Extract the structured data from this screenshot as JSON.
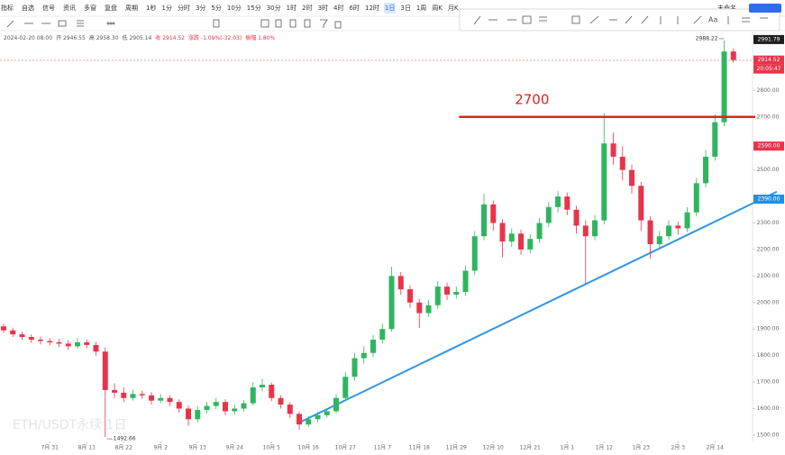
{
  "toolbar": {
    "tools": [
      "指标",
      "自选",
      "信号",
      "资讯",
      "多窗",
      "复盘",
      "周期"
    ],
    "intervals": [
      "1秒",
      "1分",
      "分时",
      "3分",
      "5分",
      "10分",
      "15分",
      "30分",
      "1时",
      "2时",
      "3时",
      "4时",
      "6时",
      "12时",
      "1日",
      "3日",
      "1周",
      "周K",
      "月K"
    ],
    "active_interval": "1日",
    "layout_name": "未命名"
  },
  "info": {
    "datetime": "2024-02-20 08:00",
    "items": [
      "开 2946.55",
      "高 2958.30",
      "低 2905.14",
      "收 2914.52",
      "涨跌 -1.09%(-32.03)",
      "振幅 1.80%"
    ]
  },
  "chart_data": {
    "type": "candlestick",
    "watermark": "ETH/USDT永续 1日",
    "up_color": "#2fb55f",
    "down_color": "#e8344b",
    "xlim": [
      -0.39,
      81.07
    ],
    "ylim": [
      1476,
      3073
    ],
    "xticks": [
      {
        "value": 5,
        "label": "7月 31"
      },
      {
        "value": 9,
        "label": "8月 11"
      },
      {
        "value": 13,
        "label": "8月 22"
      },
      {
        "value": 17,
        "label": "9月 2"
      },
      {
        "value": 21,
        "label": "9月 13"
      },
      {
        "value": 25,
        "label": "9月 24"
      },
      {
        "value": 29,
        "label": "10月 5"
      },
      {
        "value": 33,
        "label": "10月 16"
      },
      {
        "value": 37,
        "label": "10月 27"
      },
      {
        "value": 41,
        "label": "11月 7"
      },
      {
        "value": 45,
        "label": "11月 18"
      },
      {
        "value": 49,
        "label": "11月 29"
      },
      {
        "value": 53,
        "label": "12月 10"
      },
      {
        "value": 57,
        "label": "12月 21"
      },
      {
        "value": 61,
        "label": "1月 1"
      },
      {
        "value": 65,
        "label": "1月 12"
      },
      {
        "value": 69,
        "label": "1月 23"
      },
      {
        "value": 73,
        "label": "2月 3"
      },
      {
        "value": 77,
        "label": "2月 14"
      }
    ],
    "yticks": [
      {
        "value": 2800,
        "label": "2800.00"
      },
      {
        "value": 2700,
        "label": "2700.00"
      },
      {
        "value": 2500,
        "label": "2500.00"
      },
      {
        "value": 2300,
        "label": "2300.00"
      },
      {
        "value": 2200,
        "label": "2200.00"
      },
      {
        "value": 2100,
        "label": "2100.00"
      },
      {
        "value": 2000,
        "label": "2000.00"
      },
      {
        "value": 1900,
        "label": "1900.00"
      },
      {
        "value": 1800,
        "label": "1800.00"
      },
      {
        "value": 1700,
        "label": "1700.00"
      },
      {
        "value": 1600,
        "label": "1600.00"
      },
      {
        "value": 1500,
        "label": "1500.00"
      }
    ],
    "price_labels": [
      {
        "value": 2991.79,
        "label": "2991.79",
        "color": "#1f1f1f"
      },
      {
        "value": 2914.52,
        "label": "2914.52",
        "color": "#e8344b"
      },
      {
        "value": 2590,
        "label": "2590.00",
        "color": "#e8344b"
      },
      {
        "value": 2390,
        "label": "2390.00",
        "color": "#1e90e8"
      }
    ],
    "countdown": "20:05:47",
    "hline": {
      "value": 2700,
      "from": 49.3,
      "color": "#e62020"
    },
    "trendline": {
      "points": [
        [
          31.8,
          1544
        ],
        [
          83.7,
          2418
        ]
      ],
      "color": "#2f95e6"
    },
    "candles": [
      [
        1910,
        1920,
        1885,
        1895
      ],
      [
        1895,
        1905,
        1870,
        1880
      ],
      [
        1880,
        1890,
        1860,
        1870
      ],
      [
        1870,
        1880,
        1848,
        1860
      ],
      [
        1860,
        1872,
        1842,
        1855
      ],
      [
        1855,
        1866,
        1838,
        1850
      ],
      [
        1850,
        1862,
        1832,
        1845
      ],
      [
        1845,
        1858,
        1822,
        1835
      ],
      [
        1835,
        1866,
        1826,
        1850
      ],
      [
        1850,
        1860,
        1828,
        1840
      ],
      [
        1840,
        1852,
        1800,
        1815
      ],
      [
        1815,
        1830,
        1492.66,
        1670
      ],
      [
        1670,
        1695,
        1640,
        1660
      ],
      [
        1660,
        1680,
        1625,
        1640
      ],
      [
        1640,
        1672,
        1630,
        1655
      ],
      [
        1655,
        1668,
        1636,
        1650
      ],
      [
        1650,
        1662,
        1615,
        1630
      ],
      [
        1630,
        1655,
        1620,
        1640
      ],
      [
        1640,
        1650,
        1610,
        1625
      ],
      [
        1625,
        1635,
        1585,
        1600
      ],
      [
        1600,
        1612,
        1535,
        1560
      ],
      [
        1560,
        1610,
        1548,
        1595
      ],
      [
        1595,
        1625,
        1582,
        1610
      ],
      [
        1610,
        1640,
        1598,
        1625
      ],
      [
        1625,
        1635,
        1575,
        1590
      ],
      [
        1590,
        1615,
        1578,
        1600
      ],
      [
        1600,
        1632,
        1590,
        1620
      ],
      [
        1620,
        1700,
        1612,
        1680
      ],
      [
        1680,
        1712,
        1665,
        1690
      ],
      [
        1690,
        1698,
        1628,
        1640
      ],
      [
        1640,
        1650,
        1600,
        1615
      ],
      [
        1615,
        1625,
        1565,
        1580
      ],
      [
        1580,
        1590,
        1520,
        1540
      ],
      [
        1540,
        1572,
        1530,
        1560
      ],
      [
        1560,
        1588,
        1548,
        1575
      ],
      [
        1575,
        1602,
        1565,
        1590
      ],
      [
        1590,
        1655,
        1582,
        1640
      ],
      [
        1640,
        1738,
        1630,
        1720
      ],
      [
        1720,
        1810,
        1705,
        1790
      ],
      [
        1790,
        1835,
        1770,
        1810
      ],
      [
        1810,
        1878,
        1795,
        1860
      ],
      [
        1860,
        1920,
        1845,
        1900
      ],
      [
        1900,
        2135,
        1890,
        2100
      ],
      [
        2100,
        2115,
        2030,
        2050
      ],
      [
        2050,
        2065,
        1980,
        2000
      ],
      [
        2000,
        2015,
        1905,
        1960
      ],
      [
        1960,
        2010,
        1945,
        1990
      ],
      [
        1990,
        2080,
        1975,
        2060
      ],
      [
        2060,
        2075,
        2010,
        2030
      ],
      [
        2030,
        2060,
        2015,
        2040
      ],
      [
        2040,
        2140,
        2025,
        2120
      ],
      [
        2120,
        2270,
        2105,
        2250
      ],
      [
        2250,
        2410,
        2235,
        2370
      ],
      [
        2370,
        2385,
        2270,
        2300
      ],
      [
        2300,
        2315,
        2170,
        2230
      ],
      [
        2230,
        2280,
        2210,
        2260
      ],
      [
        2260,
        2275,
        2180,
        2200
      ],
      [
        2200,
        2258,
        2185,
        2240
      ],
      [
        2240,
        2320,
        2225,
        2300
      ],
      [
        2300,
        2380,
        2285,
        2360
      ],
      [
        2360,
        2420,
        2340,
        2400
      ],
      [
        2400,
        2415,
        2330,
        2350
      ],
      [
        2350,
        2365,
        2260,
        2290
      ],
      [
        2290,
        2310,
        2070,
        2250
      ],
      [
        2250,
        2330,
        2235,
        2310
      ],
      [
        2310,
        2715,
        2295,
        2600
      ],
      [
        2600,
        2640,
        2520,
        2550
      ],
      [
        2550,
        2590,
        2460,
        2500
      ],
      [
        2500,
        2520,
        2410,
        2440
      ],
      [
        2440,
        2455,
        2270,
        2310
      ],
      [
        2310,
        2325,
        2165,
        2220
      ],
      [
        2220,
        2270,
        2200,
        2250
      ],
      [
        2250,
        2310,
        2235,
        2290
      ],
      [
        2290,
        2305,
        2255,
        2280
      ],
      [
        2280,
        2360,
        2265,
        2340
      ],
      [
        2340,
        2470,
        2325,
        2450
      ],
      [
        2450,
        2575,
        2435,
        2550
      ],
      [
        2550,
        2710,
        2535,
        2680
      ],
      [
        2680,
        2988.22,
        2665,
        2946.55
      ],
      [
        2946.55,
        2958.3,
        2905.14,
        2914.52
      ]
    ]
  }
}
